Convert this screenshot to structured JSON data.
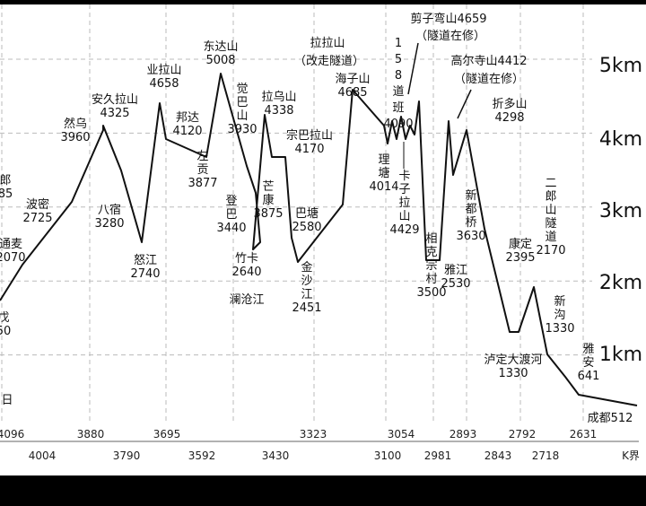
{
  "chart_data": {
    "type": "line",
    "title": "",
    "xlabel": "",
    "ylabel": "",
    "ylim": [
      0,
      6000
    ],
    "grid": true,
    "y_ticks": [
      "5km",
      "4km",
      "3km",
      "2km",
      "1km"
    ],
    "series": [
      {
        "values": [
          1700,
          2070,
          2725,
          3960,
          4325,
          3280,
          2740,
          4658,
          4120,
          3877,
          5008,
          4338,
          3930,
          3440,
          2640,
          4338,
          3875,
          4170,
          2580,
          2451,
          4685,
          4090,
          4014,
          4429,
          4659,
          2530,
          3500,
          4412,
          3630,
          4298,
          2395,
          1330,
          2170,
          1330,
          641,
          512
        ]
      }
    ],
    "annotations": [
      {
        "text": "郎",
        "sub": "85"
      },
      {
        "text": "通麦",
        "sub": "2070"
      },
      {
        "text": "戊",
        "sub": "50"
      },
      {
        "text": "日"
      },
      {
        "text": "波密",
        "sub": "2725"
      },
      {
        "text": "然乌",
        "sub": "3960"
      },
      {
        "text": "安久拉山",
        "sub": "4325"
      },
      {
        "text": "八宿",
        "sub": "3280"
      },
      {
        "text": "怒江",
        "sub": "2740"
      },
      {
        "text": "业拉山",
        "sub": "4658"
      },
      {
        "text": "邦达",
        "sub": "4120"
      },
      {
        "text": "左贡",
        "sub": "3877"
      },
      {
        "text": "东达山",
        "sub": "5008"
      },
      {
        "text": "觉巴山",
        "sub": "3930"
      },
      {
        "text": "登巴",
        "sub": "3440"
      },
      {
        "text": "竹卡",
        "sub": "2640"
      },
      {
        "text": "澜沧江"
      },
      {
        "text": "拉乌山",
        "sub": "4338"
      },
      {
        "text": "芒康",
        "sub": "3875"
      },
      {
        "text": "宗巴拉山",
        "sub": "4170"
      },
      {
        "text": "巴塘",
        "sub": "2580"
      },
      {
        "text": "金沙江",
        "sub": "2451"
      },
      {
        "text": "拉拉山"
      },
      {
        "text": "（改走隧道）"
      },
      {
        "text": "海子山",
        "sub": "4685"
      },
      {
        "text": "158道班",
        "sub": "4090"
      },
      {
        "text": "理塘",
        "sub": "4014"
      },
      {
        "text": "卡子拉山",
        "sub": "4429"
      },
      {
        "text": "剪子弯山4659"
      },
      {
        "text": "（隧道在修）"
      },
      {
        "text": "相克宗村",
        "sub": "3500"
      },
      {
        "text": "雅江",
        "sub": "2530"
      },
      {
        "text": "高尔寺山4412"
      },
      {
        "text": "（隧道在修）"
      },
      {
        "text": "新都桥",
        "sub": "3630"
      },
      {
        "text": "折多山",
        "sub": "4298"
      },
      {
        "text": "康定",
        "sub": "2395"
      },
      {
        "text": "泸定大渡河",
        "sub": "1330"
      },
      {
        "text": "二郎山隧道",
        "sub": "2170"
      },
      {
        "text": "新沟",
        "sub": "1330"
      },
      {
        "text": "雅安",
        "sub": "641"
      },
      {
        "text": "成都512"
      }
    ],
    "x_ticks_upper": [
      "4096",
      "3880",
      "3695",
      "3323",
      "3054",
      "2893",
      "2792",
      "2631"
    ],
    "x_ticks_lower": [
      "4004",
      "3790",
      "3592",
      "3430",
      "3100",
      "2981",
      "2843",
      "2718",
      "K界"
    ]
  }
}
